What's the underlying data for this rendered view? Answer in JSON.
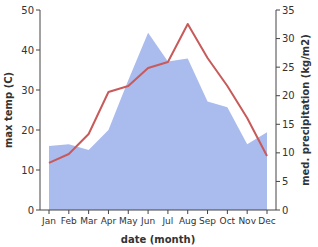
{
  "chart_data": {
    "type": "line",
    "xlabel": "date (month)",
    "ylabel": "max temp (C)",
    "y2label": "med. precipitation (kg/m2)",
    "categories": [
      "Jan",
      "Feb",
      "Mar",
      "Apr",
      "May",
      "Jun",
      "Jul",
      "Aug",
      "Sep",
      "Oct",
      "Nov",
      "Dec"
    ],
    "series": [
      {
        "type": "area",
        "axis": "y2",
        "color": "#aabbee",
        "values": [
          11.2,
          11.5,
          10.5,
          14,
          22.7,
          31,
          26,
          26.5,
          19,
          18,
          11.5,
          13.6
        ]
      },
      {
        "type": "line",
        "color": "#c85a5a",
        "values": [
          11.8,
          14,
          19,
          29.5,
          31,
          35.5,
          37,
          46.5,
          38,
          31,
          23,
          13.5
        ]
      }
    ],
    "ylim": [
      0,
      50
    ],
    "yticks": [
      0,
      10,
      20,
      30,
      40,
      50
    ],
    "y2lim": [
      0,
      35
    ],
    "y2ticks": [
      0,
      5,
      10,
      15,
      20,
      25,
      30,
      35
    ]
  }
}
